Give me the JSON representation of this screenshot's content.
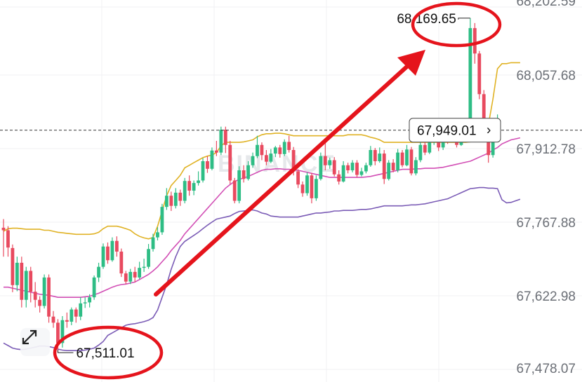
{
  "chart_data": {
    "type": "candlestick",
    "watermark": "BINANCE",
    "y_axis_ticks": [
      "68,202.59",
      "68,057.68",
      "67,912.78",
      "67,767.88",
      "67,622.98",
      "67,478.07"
    ],
    "ylim": [
      67478.07,
      68202.59
    ],
    "current_price_label": "67,949.01",
    "high_label": "68,169.65",
    "low_label": "67,511.01",
    "colors": {
      "up": "#2ebd85",
      "down": "#e84a5f",
      "upper_band": "#e0b224",
      "middle_band": "#d24fb5",
      "lower_band": "#7b5cb6",
      "annotation": "#e5141c"
    },
    "candles": [
      [
        67757,
        67752,
        67774,
        67700
      ],
      [
        67752,
        67718,
        67760,
        67700
      ],
      [
        67717,
        67644,
        67724,
        67630
      ],
      [
        67644,
        67688,
        67700,
        67632
      ],
      [
        67688,
        67615,
        67700,
        67600
      ],
      [
        67615,
        67672,
        67680,
        67600
      ],
      [
        67672,
        67631,
        67680,
        67610
      ],
      [
        67631,
        67615,
        67650,
        67600
      ],
      [
        67615,
        67603,
        67622,
        67590
      ],
      [
        67603,
        67659,
        67665,
        67598
      ],
      [
        67659,
        67582,
        67665,
        67570
      ],
      [
        67582,
        67570,
        67593,
        67560
      ],
      [
        67570,
        67530,
        67577,
        67511
      ],
      [
        67530,
        67575,
        67583,
        67521
      ],
      [
        67575,
        67572,
        67590,
        67560
      ],
      [
        67572,
        67596,
        67600,
        67565
      ],
      [
        67596,
        67582,
        67600,
        67570
      ],
      [
        67582,
        67608,
        67620,
        67575
      ],
      [
        67608,
        67610,
        67620,
        67599
      ],
      [
        67610,
        67620,
        67626,
        67600
      ],
      [
        67620,
        67659,
        67663,
        67615
      ],
      [
        67659,
        67680,
        67688,
        67650
      ],
      [
        67680,
        67720,
        67726,
        67676
      ],
      [
        67720,
        67693,
        67728,
        67686
      ],
      [
        67693,
        67731,
        67738,
        67690
      ],
      [
        67731,
        67710,
        67740,
        67700
      ],
      [
        67710,
        67667,
        67716,
        67660
      ],
      [
        67667,
        67651,
        67672,
        67646
      ],
      [
        67651,
        67670,
        67676,
        67646
      ],
      [
        67670,
        67659,
        67680,
        67650
      ],
      [
        67659,
        67678,
        67690,
        67656
      ],
      [
        67678,
        67680,
        67696,
        67670
      ],
      [
        67680,
        67715,
        67725,
        67676
      ],
      [
        67715,
        67738,
        67745,
        67710
      ],
      [
        67738,
        67748,
        67758,
        67732
      ],
      [
        67748,
        67798,
        67804,
        67743
      ],
      [
        67798,
        67820,
        67835,
        67792
      ],
      [
        67820,
        67800,
        67828,
        67790
      ],
      [
        67800,
        67826,
        67835,
        67795
      ],
      [
        67826,
        67810,
        67832,
        67800
      ],
      [
        67810,
        67849,
        67855,
        67805
      ],
      [
        67849,
        67830,
        67860,
        67820
      ],
      [
        67830,
        67845,
        67850,
        67821
      ],
      [
        67845,
        67850,
        67868,
        67840
      ],
      [
        67850,
        67888,
        67894,
        67846
      ],
      [
        67888,
        67873,
        67898,
        67865
      ],
      [
        67873,
        67909,
        67915,
        67870
      ],
      [
        67909,
        67905,
        67928,
        67898
      ],
      [
        67905,
        67950,
        67956,
        67900
      ],
      [
        67950,
        67920,
        67956,
        67904
      ],
      [
        67920,
        67850,
        67928,
        67843
      ],
      [
        67850,
        67810,
        67855,
        67805
      ],
      [
        67810,
        67870,
        67878,
        67805
      ],
      [
        67870,
        67853,
        67880,
        67846
      ],
      [
        67853,
        67880,
        67888,
        67850
      ],
      [
        67880,
        67898,
        67905,
        67875
      ],
      [
        67898,
        67920,
        67938,
        67894
      ],
      [
        67920,
        67900,
        67925,
        67890
      ],
      [
        67900,
        67887,
        67910,
        67880
      ],
      [
        67887,
        67903,
        67912,
        67884
      ],
      [
        67903,
        67915,
        67918,
        67896
      ],
      [
        67915,
        67902,
        67920,
        67895
      ],
      [
        67902,
        67926,
        67931,
        67898
      ],
      [
        67926,
        67910,
        67938,
        67905
      ],
      [
        67910,
        67868,
        67916,
        67860
      ],
      [
        67868,
        67842,
        67872,
        67835
      ],
      [
        67842,
        67825,
        67848,
        67818
      ],
      [
        67825,
        67860,
        67866,
        67820
      ],
      [
        67860,
        67815,
        67865,
        67805
      ],
      [
        67815,
        67853,
        67860,
        67810
      ],
      [
        67853,
        67898,
        67905,
        67850
      ],
      [
        67898,
        67880,
        67931,
        67870
      ],
      [
        67880,
        67890,
        67895,
        67873
      ],
      [
        67890,
        67862,
        67896,
        67858
      ],
      [
        67862,
        67848,
        67870,
        67842
      ],
      [
        67848,
        67880,
        67888,
        67846
      ],
      [
        67880,
        67870,
        67885,
        67864
      ],
      [
        67870,
        67885,
        67890,
        67866
      ],
      [
        67885,
        67861,
        67890,
        67856
      ],
      [
        67861,
        67868,
        67875,
        67858
      ],
      [
        67868,
        67880,
        67885,
        67864
      ],
      [
        67880,
        67910,
        67918,
        67877
      ],
      [
        67910,
        67888,
        67914,
        67880
      ],
      [
        67888,
        67903,
        67915,
        67885
      ],
      [
        67903,
        67853,
        67910,
        67843
      ],
      [
        67853,
        67885,
        67890,
        67850
      ],
      [
        67885,
        67870,
        67892,
        67866
      ],
      [
        67870,
        67905,
        67912,
        67866
      ],
      [
        67905,
        67880,
        67910,
        67876
      ],
      [
        67880,
        67911,
        67920,
        67878
      ],
      [
        67911,
        67864,
        67916,
        67860
      ],
      [
        67864,
        67890,
        67896,
        67860
      ],
      [
        67890,
        67920,
        67930,
        67886
      ],
      [
        67920,
        67905,
        67926,
        67900
      ],
      [
        67905,
        67925,
        67932,
        67902
      ],
      [
        67925,
        67940,
        67946,
        67920
      ],
      [
        67940,
        67915,
        67950,
        67908
      ],
      [
        67915,
        67938,
        67944,
        67910
      ],
      [
        67938,
        67929,
        67945,
        67922
      ],
      [
        67929,
        67935,
        67940,
        67926
      ],
      [
        67935,
        67920,
        67942,
        67915
      ],
      [
        67920,
        67938,
        67945,
        67918
      ],
      [
        67938,
        67949,
        67955,
        67930
      ],
      [
        67949,
        68150,
        68169.65,
        67945
      ],
      [
        68150,
        68100,
        68160,
        68080
      ],
      [
        68100,
        68020,
        68105,
        68010
      ],
      [
        68020,
        67950,
        68028,
        67940
      ],
      [
        67950,
        67900,
        67960,
        67885
      ],
      [
        67900,
        67949.01,
        67955,
        67895
      ],
      [
        67949.01,
        67949.01,
        67980,
        67940
      ]
    ],
    "bands": {
      "upper": [
        67750,
        67755,
        67756,
        67756,
        67755,
        67754,
        67754,
        67754,
        67754,
        67752,
        67752,
        67750,
        67748,
        67747,
        67746,
        67745,
        67744,
        67744,
        67744,
        67744,
        67745,
        67748,
        67755,
        67760,
        67760,
        67760,
        67758,
        67755,
        67752,
        67745,
        67740,
        67737,
        67735,
        67738,
        67760,
        67790,
        67820,
        67840,
        67850,
        67860,
        67875,
        67880,
        67885,
        67890,
        67895,
        67898,
        67900,
        67905,
        67918,
        67925,
        67925,
        67925,
        67925,
        67926,
        67928,
        67930,
        67936,
        67940,
        67942,
        67942,
        67943,
        67943,
        67942,
        67940,
        67938,
        67938,
        67938,
        67938,
        67938,
        67938,
        67938,
        67938,
        67938,
        67938,
        67938,
        67938,
        67940,
        67940,
        67940,
        67940,
        67938,
        67935,
        67933,
        67930,
        67925,
        67925,
        67925,
        67925,
        67925,
        67925,
        67925,
        67925,
        67925,
        67925,
        67925,
        67925,
        67925,
        67925,
        67925,
        67925,
        67925,
        67925,
        67925,
        67926,
        67930,
        67935,
        67940,
        67960,
        68010,
        68070,
        68080,
        68080,
        68082,
        68082,
        68082
      ],
      "middle": [
        67640,
        67640,
        67638,
        67636,
        67634,
        67632,
        67630,
        67628,
        67626,
        67625,
        67624,
        67622,
        67620,
        67620,
        67620,
        67620,
        67620,
        67620,
        67621,
        67622,
        67625,
        67628,
        67632,
        67636,
        67640,
        67643,
        67645,
        67646,
        67648,
        67650,
        67655,
        67660,
        67665,
        67672,
        67680,
        67690,
        67700,
        67712,
        67722,
        67732,
        67745,
        67755,
        67765,
        67775,
        67785,
        67795,
        67805,
        67815,
        67825,
        67835,
        67842,
        67848,
        67852,
        67855,
        67858,
        67862,
        67866,
        67870,
        67872,
        67872,
        67873,
        67873,
        67872,
        67872,
        67871,
        67870,
        67868,
        67866,
        67864,
        67862,
        67860,
        67858,
        67856,
        67856,
        67856,
        67856,
        67856,
        67856,
        67856,
        67856,
        67857,
        67858,
        67860,
        67862,
        67864,
        67866,
        67868,
        67870,
        67872,
        67872,
        67872,
        67873,
        67873,
        67874,
        67874,
        67874,
        67875,
        67876,
        67878,
        67880,
        67882,
        67884,
        67886,
        67888,
        67892,
        67896,
        67900,
        67904,
        67910,
        67915,
        67922,
        67926,
        67930,
        67932,
        67934
      ],
      "lower": [
        67530,
        67525,
        67520,
        67518,
        67517,
        67518,
        67520,
        67522,
        67524,
        67524,
        67523,
        67521,
        67518,
        67516,
        67515,
        67515,
        67515,
        67515,
        67516,
        67518,
        67520,
        67526,
        67533,
        67545,
        67550,
        67555,
        67560,
        67565,
        67567,
        67568,
        67570,
        67572,
        67575,
        67580,
        67595,
        67620,
        67645,
        67675,
        67700,
        67720,
        67730,
        67736,
        67742,
        67748,
        67755,
        67762,
        67768,
        67774,
        67776,
        67778,
        67780,
        67785,
        67789,
        67790,
        67791,
        67792,
        67790,
        67786,
        67784,
        67780,
        67779,
        67778,
        67778,
        67778,
        67778,
        67778,
        67780,
        67782,
        67784,
        67786,
        67786,
        67787,
        67788,
        67790,
        67790,
        67791,
        67791,
        67791,
        67792,
        67793,
        67793,
        67794,
        67796,
        67798,
        67800,
        67800,
        67800,
        67800,
        67800,
        67801,
        67802,
        67802,
        67803,
        67804,
        67806,
        67808,
        67810,
        67812,
        67814,
        67818,
        67822,
        67826,
        67830,
        67834,
        67835,
        67836,
        67836,
        67835,
        67835,
        67834,
        67812,
        67806,
        67807,
        67810,
        67813
      ]
    }
  }
}
